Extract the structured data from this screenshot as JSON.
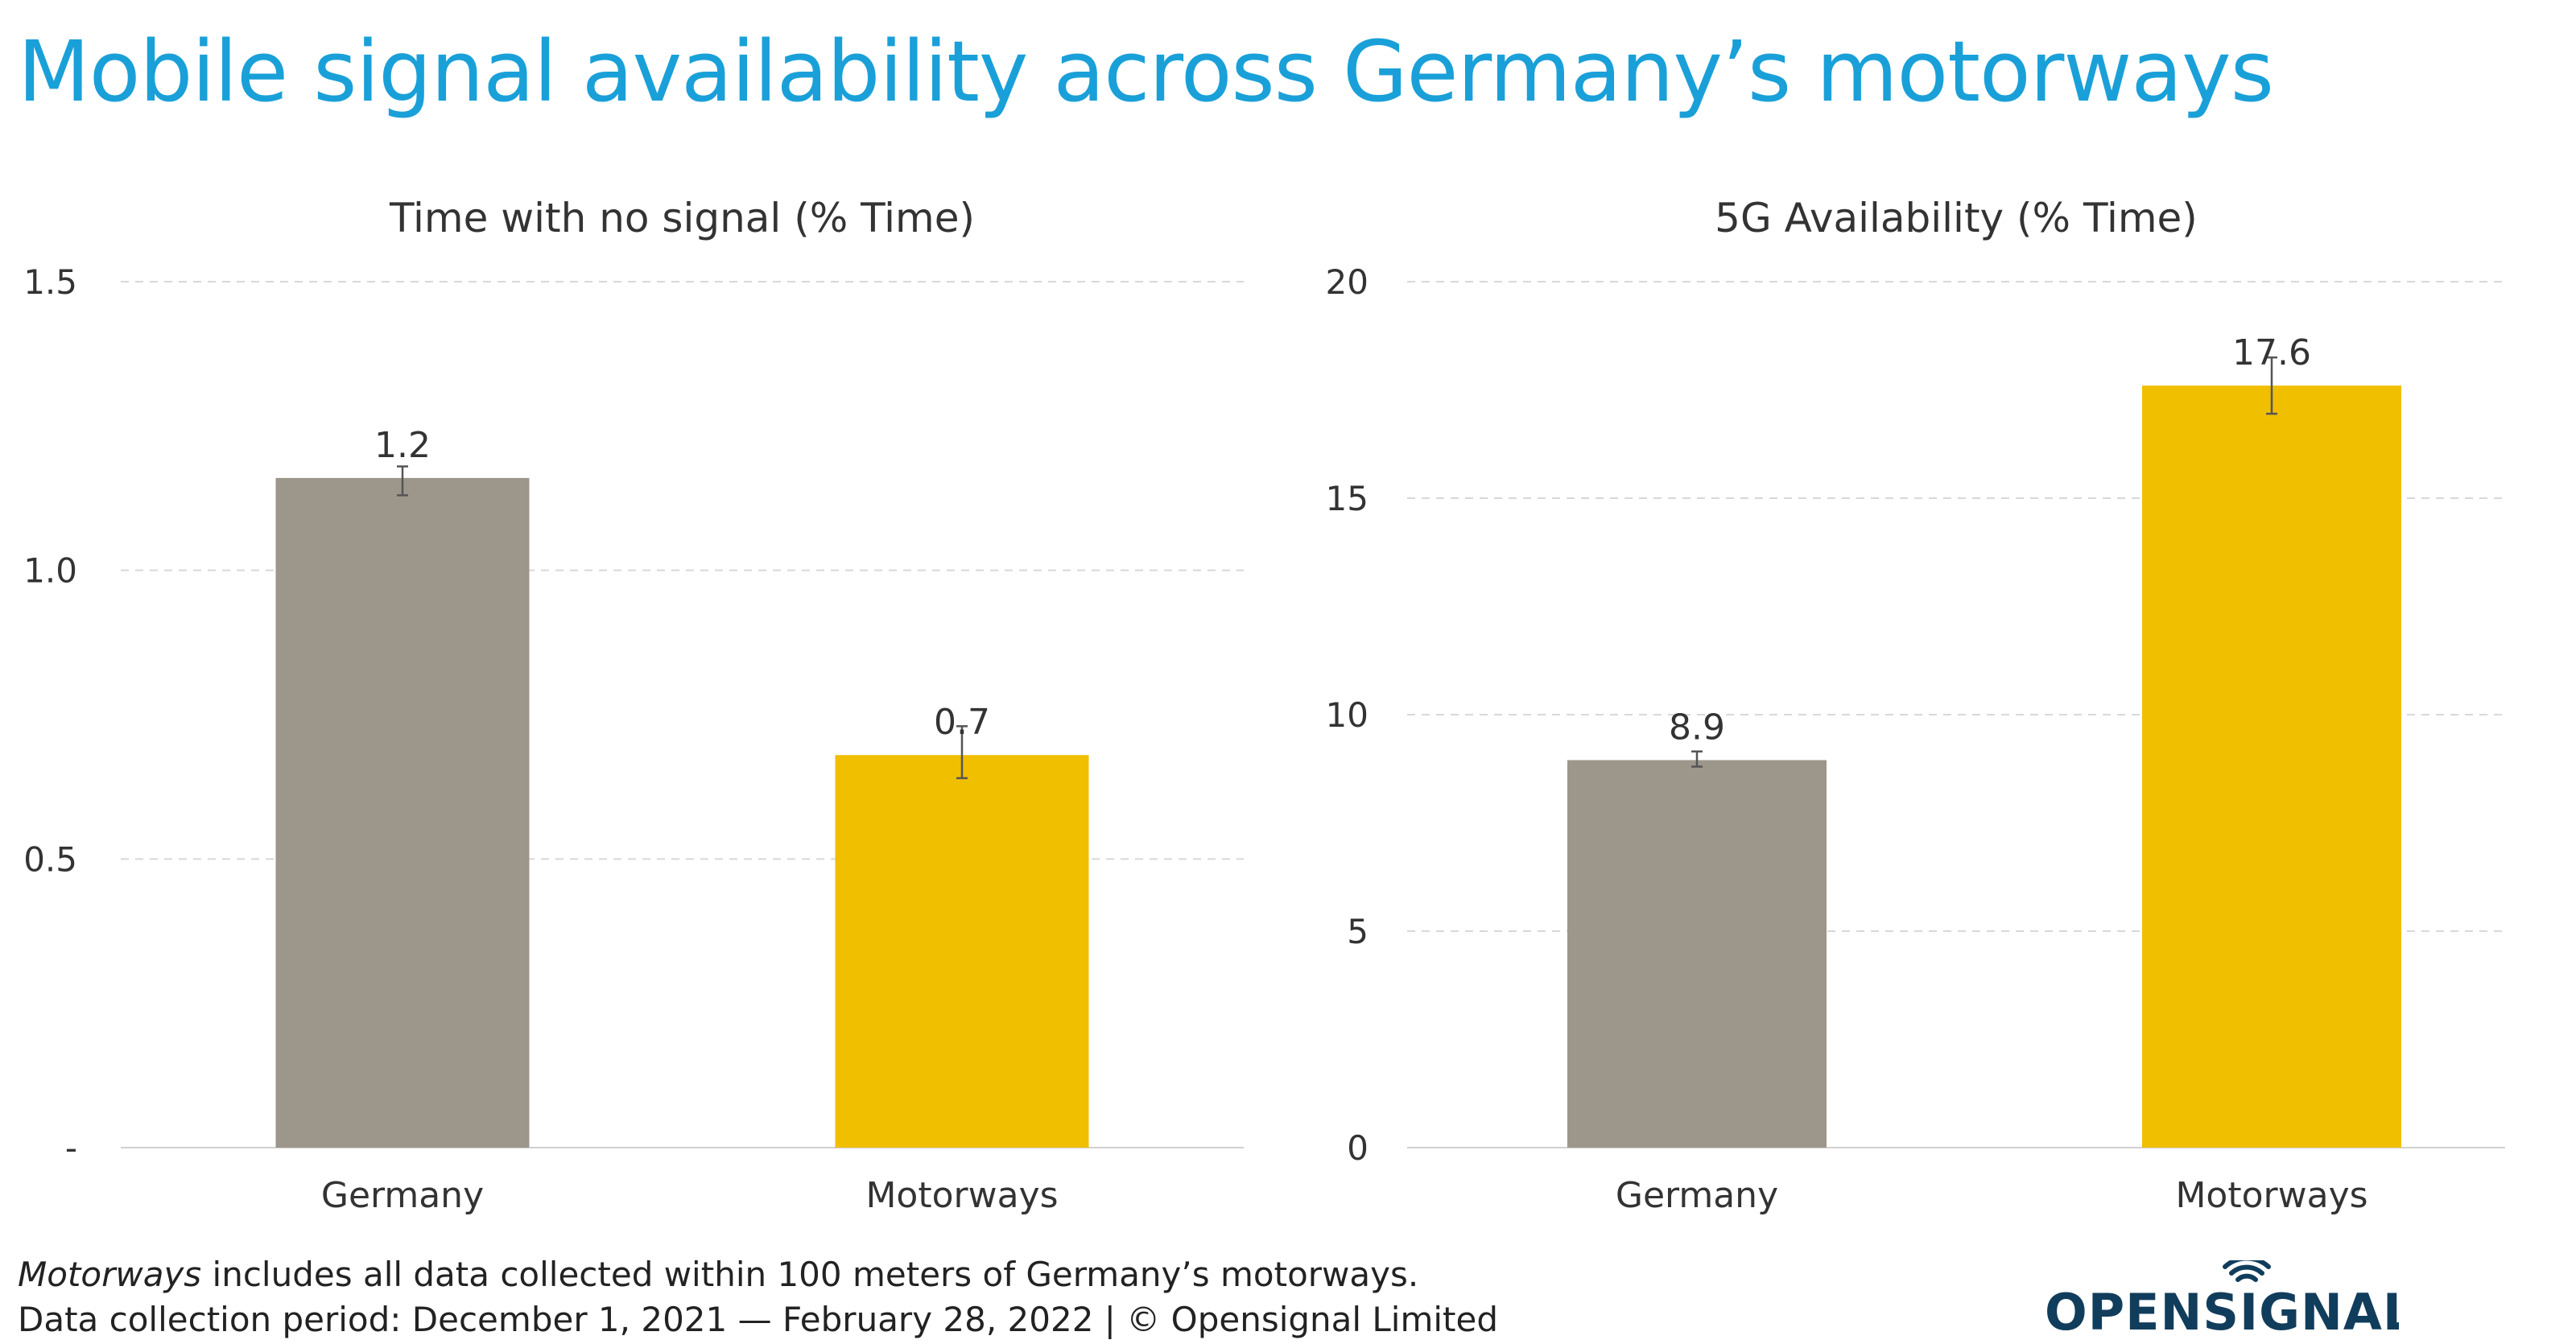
{
  "title": "Mobile signal availability across Germany’s motorways",
  "footnote": {
    "line1_italic": "Motorways",
    "line1_rest": " includes all data collected within 100 meters of Germany’s motorways.",
    "line2": "Data collection period: December 1, 2021 — February 28, 2022 | © Opensignal Limited"
  },
  "logo": {
    "text": "OPENSIGNAL",
    "icon": "wifi-signal-icon",
    "color": "#113d5c"
  },
  "colors": {
    "title": "#1aa0d8",
    "germany": "#9d968b",
    "motorways": "#f0bf00"
  },
  "chart_data": [
    {
      "type": "bar",
      "title": "Time with no signal (% Time)",
      "categories": [
        "Germany",
        "Motorways"
      ],
      "values": [
        1.16,
        0.68
      ],
      "data_labels": [
        "1.2",
        "0.7"
      ],
      "error_low": [
        1.13,
        0.64
      ],
      "error_high": [
        1.18,
        0.73
      ],
      "colors": [
        "#9d968b",
        "#f0bf00"
      ],
      "ylim": [
        0,
        1.5
      ],
      "yticks": [
        0,
        0.5,
        1.0,
        1.5
      ],
      "ytick_labels": [
        "-",
        "0.5",
        "1.0",
        "1.5"
      ],
      "grid": true,
      "legend": "none"
    },
    {
      "type": "bar",
      "title": "5G Availability (% Time)",
      "categories": [
        "Germany",
        "Motorways"
      ],
      "values": [
        8.95,
        17.6
      ],
      "data_labels": [
        "8.9",
        "17.6"
      ],
      "error_low": [
        8.8,
        16.95
      ],
      "error_high": [
        9.15,
        18.25
      ],
      "colors": [
        "#9d968b",
        "#f0bf00"
      ],
      "ylim": [
        0,
        20
      ],
      "yticks": [
        0,
        5,
        10,
        15,
        20
      ],
      "ytick_labels": [
        "0",
        "5",
        "10",
        "15",
        "20"
      ],
      "grid": true,
      "legend": "none"
    }
  ]
}
